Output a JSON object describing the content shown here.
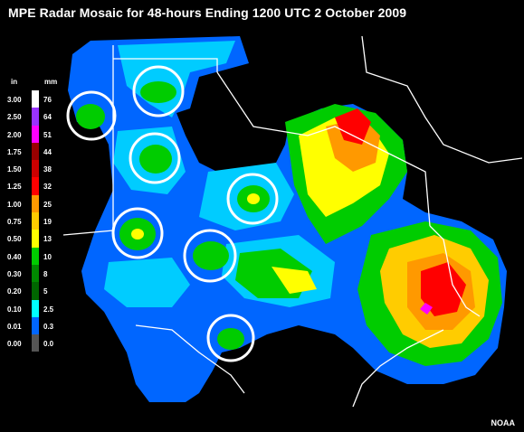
{
  "title": "MPE Radar Mosaic for 48-hours Ending 1200 UTC 2 October 2009",
  "legend": {
    "unit_in": "in",
    "unit_mm": "mm",
    "rows": [
      {
        "in": "3.00",
        "mm": "76",
        "color": "#ffffff"
      },
      {
        "in": "2.50",
        "mm": "64",
        "color": "#9933ff"
      },
      {
        "in": "2.00",
        "mm": "51",
        "color": "#ff00ff"
      },
      {
        "in": "1.75",
        "mm": "44",
        "color": "#990000"
      },
      {
        "in": "1.50",
        "mm": "38",
        "color": "#cc0000"
      },
      {
        "in": "1.25",
        "mm": "32",
        "color": "#ff0000"
      },
      {
        "in": "1.00",
        "mm": "25",
        "color": "#ff9900"
      },
      {
        "in": "0.75",
        "mm": "19",
        "color": "#ffcc00"
      },
      {
        "in": "0.50",
        "mm": "13",
        "color": "#ffff00"
      },
      {
        "in": "0.40",
        "mm": "10",
        "color": "#00cc00"
      },
      {
        "in": "0.30",
        "mm": "8",
        "color": "#008800"
      },
      {
        "in": "0.20",
        "mm": "5",
        "color": "#006600"
      },
      {
        "in": "0.10",
        "mm": "2.5",
        "color": "#00ffff"
      },
      {
        "in": "0.01",
        "mm": "0.3",
        "color": "#0066ff"
      },
      {
        "in": "0.00",
        "mm": "0.0",
        "color": "#555555"
      }
    ]
  },
  "credit": "NOAA",
  "colors": {
    "background": "#000000",
    "border": "#ffffff",
    "highlight_circle": "#ffffff"
  }
}
